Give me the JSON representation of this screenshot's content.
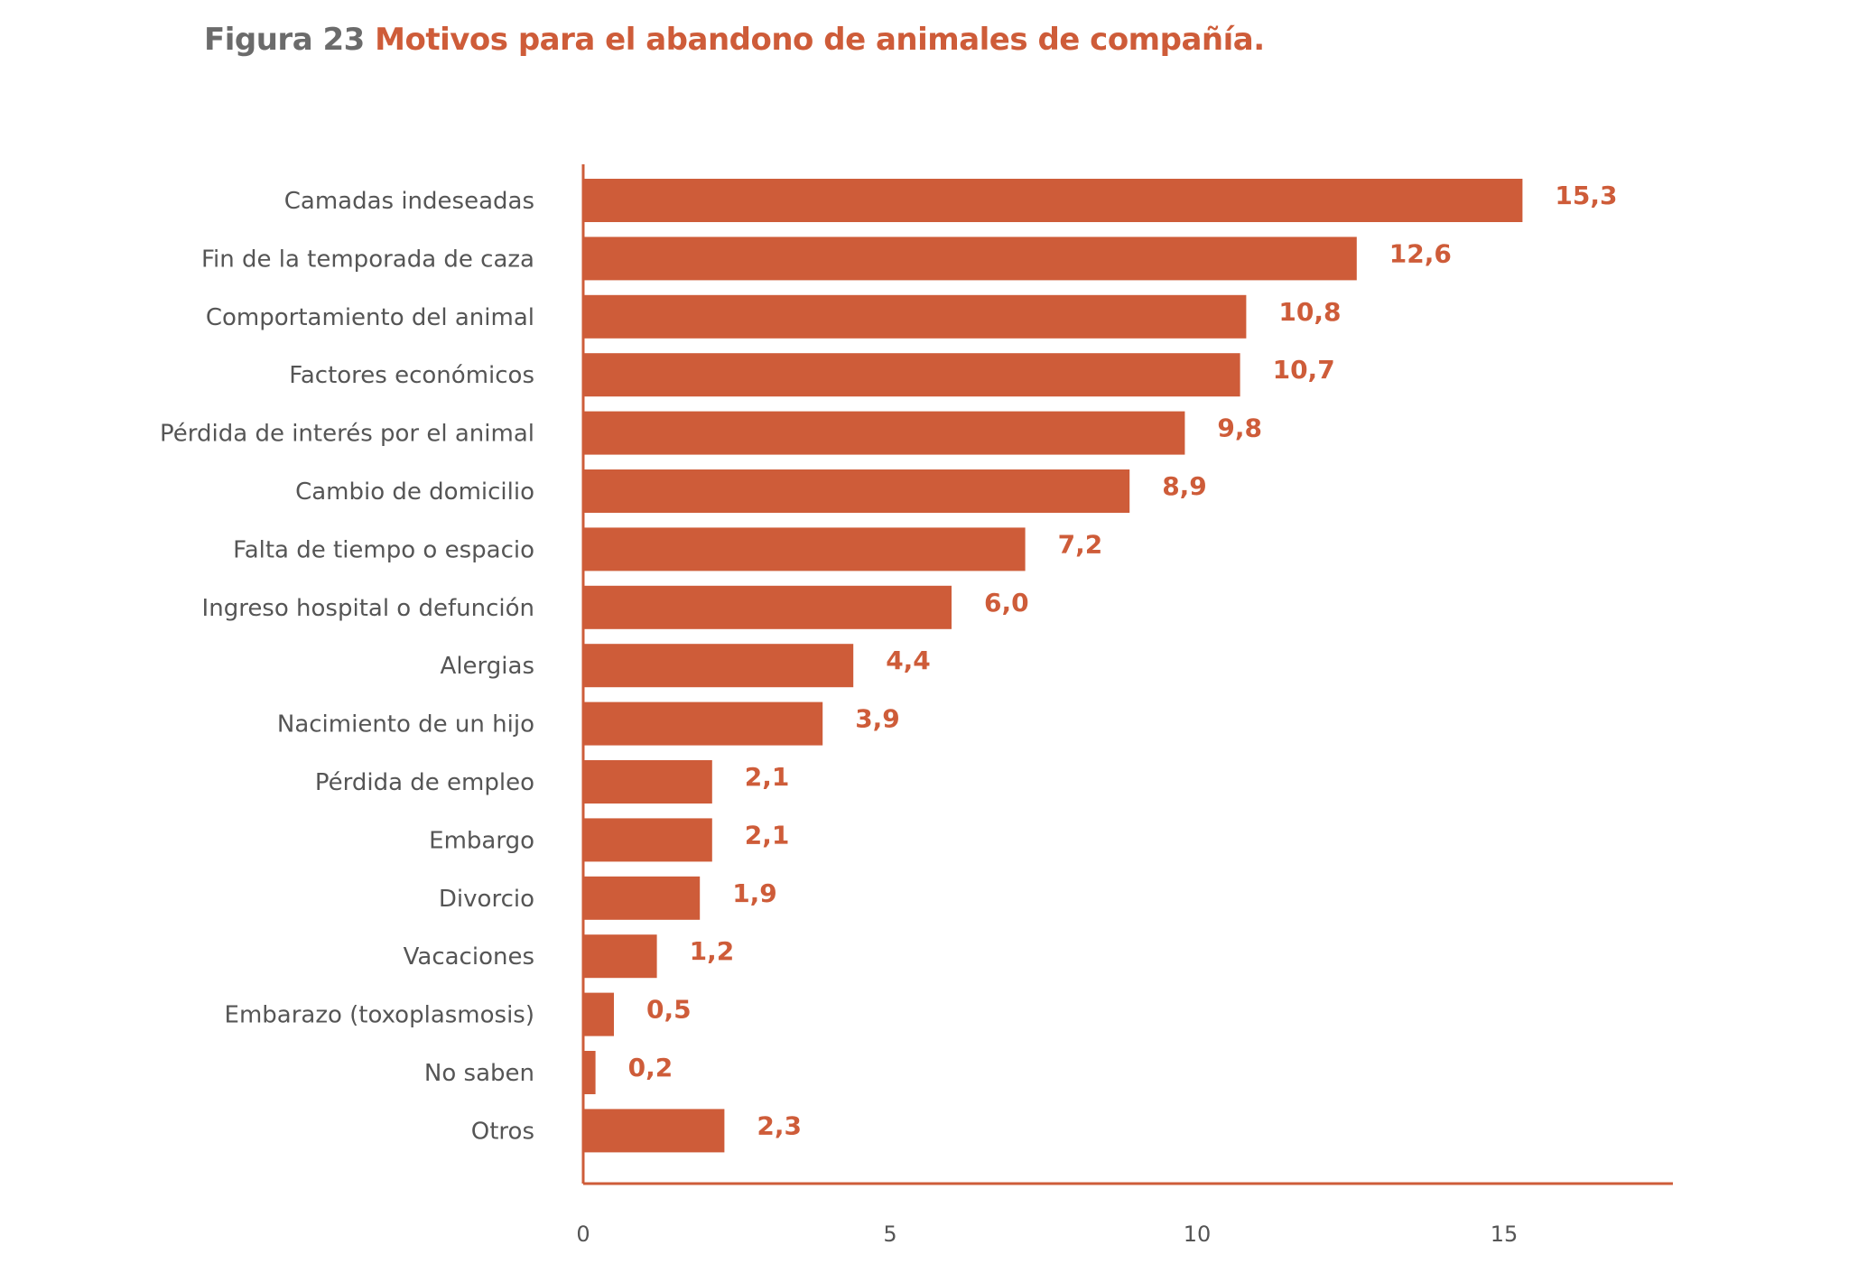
{
  "title": {
    "number": "Figura 23",
    "text": "Motivos para el abandono de animales de compañía."
  },
  "colors": {
    "bar": "#ce5c39",
    "title_number": "#6b6b6b",
    "axis": "#ce5c39",
    "category_text": "#555555"
  },
  "chart_data": {
    "type": "bar",
    "orientation": "horizontal",
    "title": "Motivos para el abandono de animales de compañía.",
    "xlabel": "",
    "ylabel": "",
    "xlim": [
      0,
      18
    ],
    "xticks": [
      "0",
      "5",
      "10",
      "15"
    ],
    "grid": false,
    "legend": "none",
    "categories": [
      "Camadas indeseadas",
      "Fin de la temporada de caza",
      "Comportamiento del animal",
      "Factores económicos",
      "Pérdida de interés por el animal",
      "Cambio de domicilio",
      "Falta de tiempo o espacio",
      "Ingreso hospital o defunción",
      "Alergias",
      "Nacimiento de un hijo",
      "Pérdida de empleo",
      "Embargo",
      "Divorcio",
      "Vacaciones",
      "Embarazo (toxoplasmosis)",
      "No saben",
      "Otros"
    ],
    "values": [
      15.3,
      12.6,
      10.8,
      10.7,
      9.8,
      8.9,
      7.2,
      6.0,
      4.4,
      3.9,
      2.1,
      2.1,
      1.9,
      1.2,
      0.5,
      0.2,
      2.3
    ],
    "value_labels": [
      "15,3",
      "12,6",
      "10,8",
      "10,7",
      "9,8",
      "8,9",
      "7,2",
      "6,0",
      "4,4",
      "3,9",
      "2,1",
      "2,1",
      "1,9",
      "1,2",
      "0,5",
      "0,2",
      "2,3"
    ]
  }
}
